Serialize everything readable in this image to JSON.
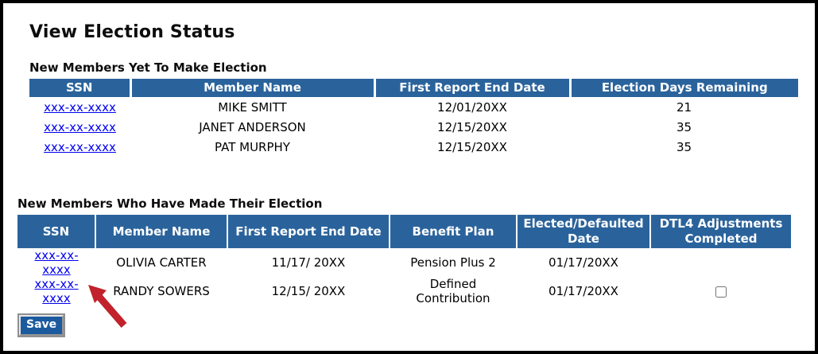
{
  "page": {
    "title": "View Election Status"
  },
  "colors": {
    "table_header_blue": "#2A639C",
    "link_blue": "#0000EE",
    "save_button_blue": "#1C5A9E",
    "annotation_arrow_red": "#C1222B"
  },
  "pending_table": {
    "section_title": "New Members Yet To Make Election",
    "columns": [
      "SSN",
      "Member Name",
      "First Report End Date",
      "Election Days Remaining"
    ],
    "rows": [
      {
        "ssn": "xxx-xx-xxxx",
        "member_name": "MIKE SMITT",
        "first_report_end_date": "12/01/20XX",
        "election_days_remaining": "21"
      },
      {
        "ssn": "xxx-xx-xxxx",
        "member_name": "JANET ANDERSON",
        "first_report_end_date": "12/15/20XX",
        "election_days_remaining": "35"
      },
      {
        "ssn": "xxx-xx-xxxx",
        "member_name": "PAT MURPHY",
        "first_report_end_date": "12/15/20XX",
        "election_days_remaining": "35"
      }
    ]
  },
  "elected_table": {
    "section_title": "New Members Who Have Made Their Election",
    "columns": [
      "SSN",
      "Member Name",
      "First Report End Date",
      "Benefit Plan",
      "Elected/Defaulted Date",
      "DTL4 Adjustments Completed"
    ],
    "rows": [
      {
        "ssn": "xxx-xx-xxxx",
        "member_name": "OLIVIA CARTER",
        "first_report_end_date": "11/17/ 20XX",
        "benefit_plan": "Pension Plus 2",
        "elected_defaulted_date": "01/17/20XX",
        "dtl4_checkbox": null
      },
      {
        "ssn": "xxx-xx-xxxx",
        "member_name": "RANDY SOWERS",
        "first_report_end_date": "12/15/ 20XX",
        "benefit_plan": "Defined Contribution",
        "elected_defaulted_date": "01/17/20XX",
        "dtl4_checkbox": "unchecked"
      }
    ]
  },
  "save": {
    "label": "Save"
  },
  "annotation": {
    "description": "red arrow pointing to SSN link of RANDY SOWERS row"
  }
}
